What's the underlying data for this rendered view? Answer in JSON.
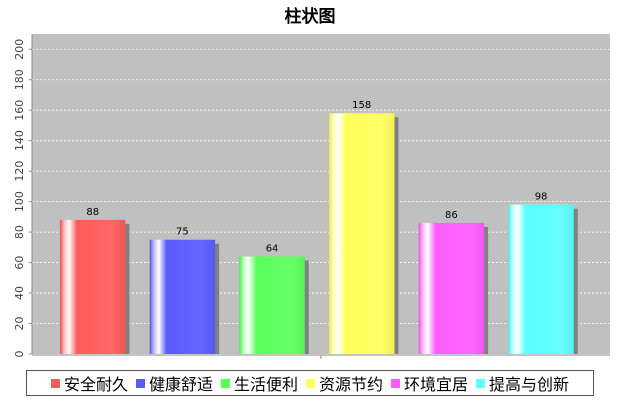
{
  "chart_data": {
    "type": "bar",
    "title": "柱状图",
    "categories": [
      "安全耐久",
      "健康舒适",
      "生活便利",
      "资源节约",
      "环境宜居",
      "提高与创新"
    ],
    "values": [
      88,
      75,
      64,
      158,
      86,
      98
    ],
    "colors": [
      "#ff5a5a",
      "#5a5aff",
      "#5aff5a",
      "#ffff5a",
      "#ff5aff",
      "#5affff"
    ],
    "ylim": [
      0,
      210
    ],
    "yticks": [
      0,
      20,
      40,
      60,
      80,
      100,
      120,
      140,
      160,
      180,
      200
    ],
    "grid": true,
    "legend_position": "bottom",
    "plot_background": "#c0c0c0"
  }
}
